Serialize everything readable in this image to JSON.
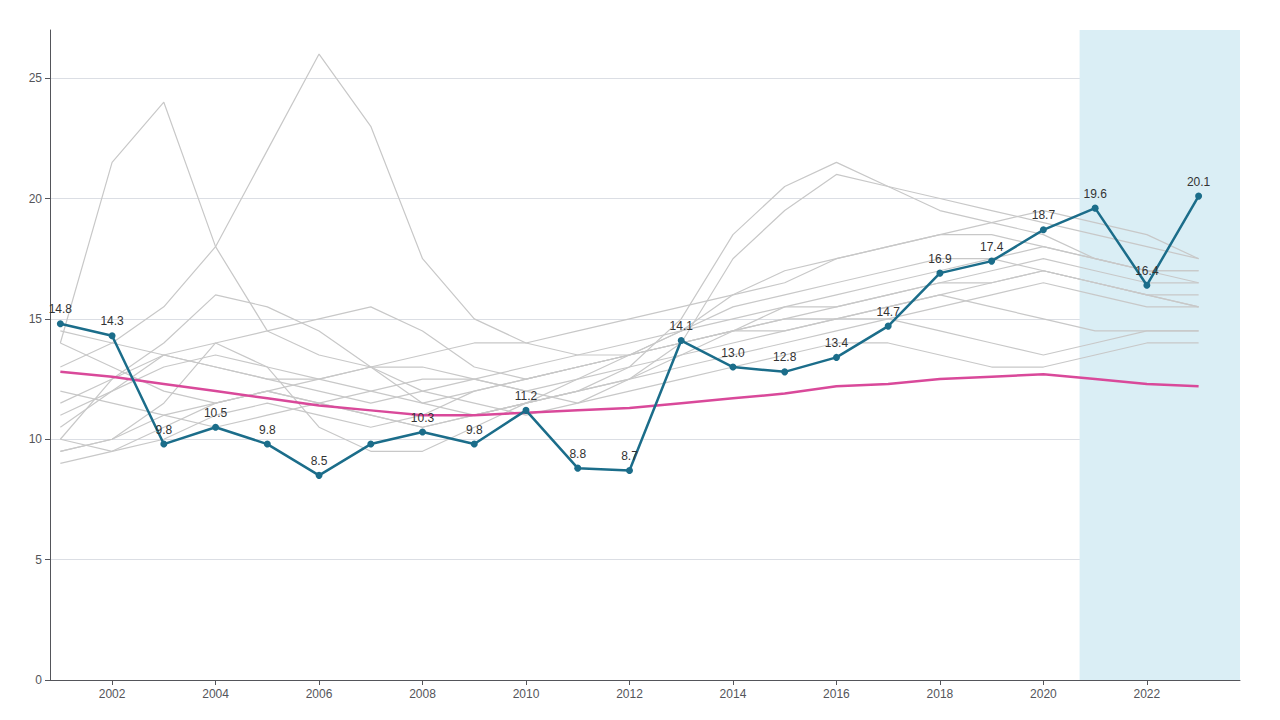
{
  "chart_data": {
    "type": "line",
    "x": [
      2001,
      2002,
      2003,
      2004,
      2005,
      2006,
      2007,
      2008,
      2009,
      2010,
      2011,
      2012,
      2013,
      2014,
      2015,
      2016,
      2017,
      2018,
      2019,
      2020,
      2021,
      2022,
      2023
    ],
    "series": [
      {
        "color": "#c8c8c8",
        "values": [
          14.0,
          21.5,
          24.0,
          18.0,
          14.5,
          13.5,
          13.0,
          12.0,
          11.5,
          11.0,
          11.5,
          12.5,
          14.0,
          17.5,
          19.5,
          21.0,
          20.5,
          20.0,
          19.5,
          19.0,
          18.5,
          18.0,
          17.5
        ]
      },
      {
        "color": "#c8c8c8",
        "values": [
          10.0,
          12.5,
          14.0,
          16.0,
          15.5,
          14.5,
          13.0,
          11.5,
          11.0,
          11.5,
          12.0,
          13.0,
          15.0,
          18.5,
          20.5,
          21.5,
          20.5,
          19.5,
          19.0,
          18.5,
          17.5,
          17.0,
          16.5
        ]
      },
      {
        "color": "#c8c8c8",
        "values": [
          9.5,
          10.0,
          11.5,
          14.0,
          13.0,
          10.5,
          9.5,
          9.5,
          10.5,
          11.5,
          12.5,
          13.5,
          14.5,
          15.5,
          16.0,
          16.5,
          17.0,
          17.5,
          17.5,
          17.0,
          16.5,
          16.0,
          15.5
        ]
      },
      {
        "color": "#c8c8c8",
        "values": [
          13.0,
          14.0,
          15.5,
          18.0,
          22.0,
          26.0,
          23.0,
          17.5,
          15.0,
          14.0,
          14.5,
          15.0,
          15.5,
          16.0,
          16.5,
          17.5,
          18.0,
          18.5,
          18.5,
          18.0,
          17.5,
          17.0,
          17.0
        ]
      },
      {
        "color": "#c8c8c8",
        "values": [
          11.0,
          12.0,
          13.5,
          14.0,
          14.5,
          15.0,
          15.5,
          14.5,
          13.0,
          12.5,
          13.0,
          13.5,
          14.5,
          16.0,
          17.0,
          17.5,
          18.0,
          18.5,
          19.0,
          19.5,
          19.0,
          18.5,
          17.5
        ]
      },
      {
        "color": "#c8c8c8",
        "values": [
          10.0,
          9.5,
          10.0,
          11.0,
          11.5,
          11.0,
          10.5,
          11.0,
          12.0,
          12.5,
          13.0,
          13.5,
          14.0,
          14.5,
          14.5,
          15.0,
          15.5,
          16.0,
          16.5,
          17.0,
          16.5,
          16.0,
          16.0
        ]
      },
      {
        "color": "#c8c8c8",
        "values": [
          14.5,
          14.0,
          13.5,
          13.0,
          12.5,
          12.5,
          13.0,
          13.5,
          14.0,
          14.0,
          13.5,
          13.5,
          14.0,
          14.5,
          15.0,
          15.0,
          15.5,
          16.0,
          15.5,
          15.0,
          14.5,
          14.5,
          14.5
        ]
      },
      {
        "color": "#c8c8c8",
        "values": [
          9.0,
          9.5,
          10.5,
          11.5,
          12.0,
          11.5,
          11.0,
          10.5,
          11.0,
          11.5,
          12.0,
          12.5,
          13.5,
          14.5,
          15.5,
          16.0,
          16.5,
          17.0,
          17.5,
          18.0,
          17.5,
          17.0,
          17.0
        ]
      },
      {
        "color": "#c8c8c8",
        "values": [
          11.5,
          12.5,
          13.5,
          13.0,
          12.5,
          12.0,
          11.5,
          12.0,
          12.5,
          13.0,
          13.5,
          14.0,
          14.5,
          15.0,
          15.5,
          15.5,
          16.0,
          16.5,
          16.5,
          17.0,
          16.5,
          16.0,
          15.5
        ]
      },
      {
        "color": "#c8c8c8",
        "values": [
          14.0,
          13.0,
          12.0,
          11.5,
          12.0,
          12.5,
          13.0,
          13.0,
          12.5,
          12.0,
          12.5,
          13.0,
          13.5,
          14.0,
          14.5,
          15.0,
          15.0,
          14.5,
          14.0,
          13.5,
          14.0,
          14.5,
          14.5
        ]
      },
      {
        "color": "#c8c8c8",
        "values": [
          10.5,
          12.0,
          13.0,
          13.5,
          13.0,
          12.5,
          12.0,
          11.5,
          12.0,
          12.5,
          13.0,
          13.5,
          14.0,
          14.5,
          15.0,
          15.5,
          16.0,
          16.5,
          17.0,
          17.5,
          17.0,
          16.5,
          16.5
        ]
      },
      {
        "color": "#c8c8c8",
        "values": [
          9.5,
          10.0,
          11.0,
          11.5,
          12.0,
          11.5,
          11.0,
          10.5,
          11.0,
          11.5,
          12.0,
          12.5,
          13.0,
          13.5,
          14.0,
          14.5,
          15.0,
          15.5,
          16.0,
          16.5,
          16.0,
          15.5,
          15.5
        ]
      },
      {
        "color": "#c8c8c8",
        "values": [
          12.0,
          11.5,
          11.0,
          10.5,
          11.0,
          11.5,
          12.0,
          12.5,
          12.5,
          12.0,
          11.5,
          12.0,
          12.5,
          13.0,
          13.5,
          14.0,
          14.0,
          13.5,
          13.0,
          13.0,
          13.5,
          14.0,
          14.0
        ]
      },
      {
        "color": "#d9499a",
        "values": [
          12.8,
          12.6,
          12.3,
          12.0,
          11.7,
          11.4,
          11.2,
          11.0,
          11.0,
          11.1,
          11.2,
          11.3,
          11.5,
          11.7,
          11.9,
          12.2,
          12.3,
          12.5,
          12.6,
          12.7,
          12.5,
          12.3,
          12.2
        ]
      },
      {
        "color": "#1b6d8a",
        "marker": "circle",
        "data_labels": true,
        "values": [
          14.8,
          14.3,
          9.8,
          10.5,
          9.8,
          8.5,
          9.8,
          10.3,
          9.8,
          11.2,
          8.8,
          8.7,
          14.1,
          13.0,
          12.8,
          13.4,
          14.7,
          16.9,
          17.4,
          18.7,
          19.6,
          16.4,
          20.1
        ],
        "value_labels": [
          "14.8",
          "14.3",
          "9.8",
          "10.5",
          "9.8",
          "8.5",
          null,
          "10.3",
          "9.8",
          "11.2",
          "8.8",
          "8.7",
          "14.1",
          "13.0",
          "12.8",
          "13.4",
          "14.7",
          "16.9",
          "17.4",
          "18.7",
          "19.6",
          "16.4",
          "20.1"
        ]
      }
    ],
    "highlight": {
      "start": 2020.7,
      "color": "#daeef5"
    },
    "xlim": [
      2000.8,
      2023.8
    ],
    "xticks": [
      2002,
      2004,
      2006,
      2008,
      2010,
      2012,
      2014,
      2016,
      2018,
      2020,
      2022
    ],
    "ylim": [
      0,
      27
    ],
    "yticks": [
      0,
      5,
      10,
      15,
      20,
      25
    ],
    "grid": true
  }
}
